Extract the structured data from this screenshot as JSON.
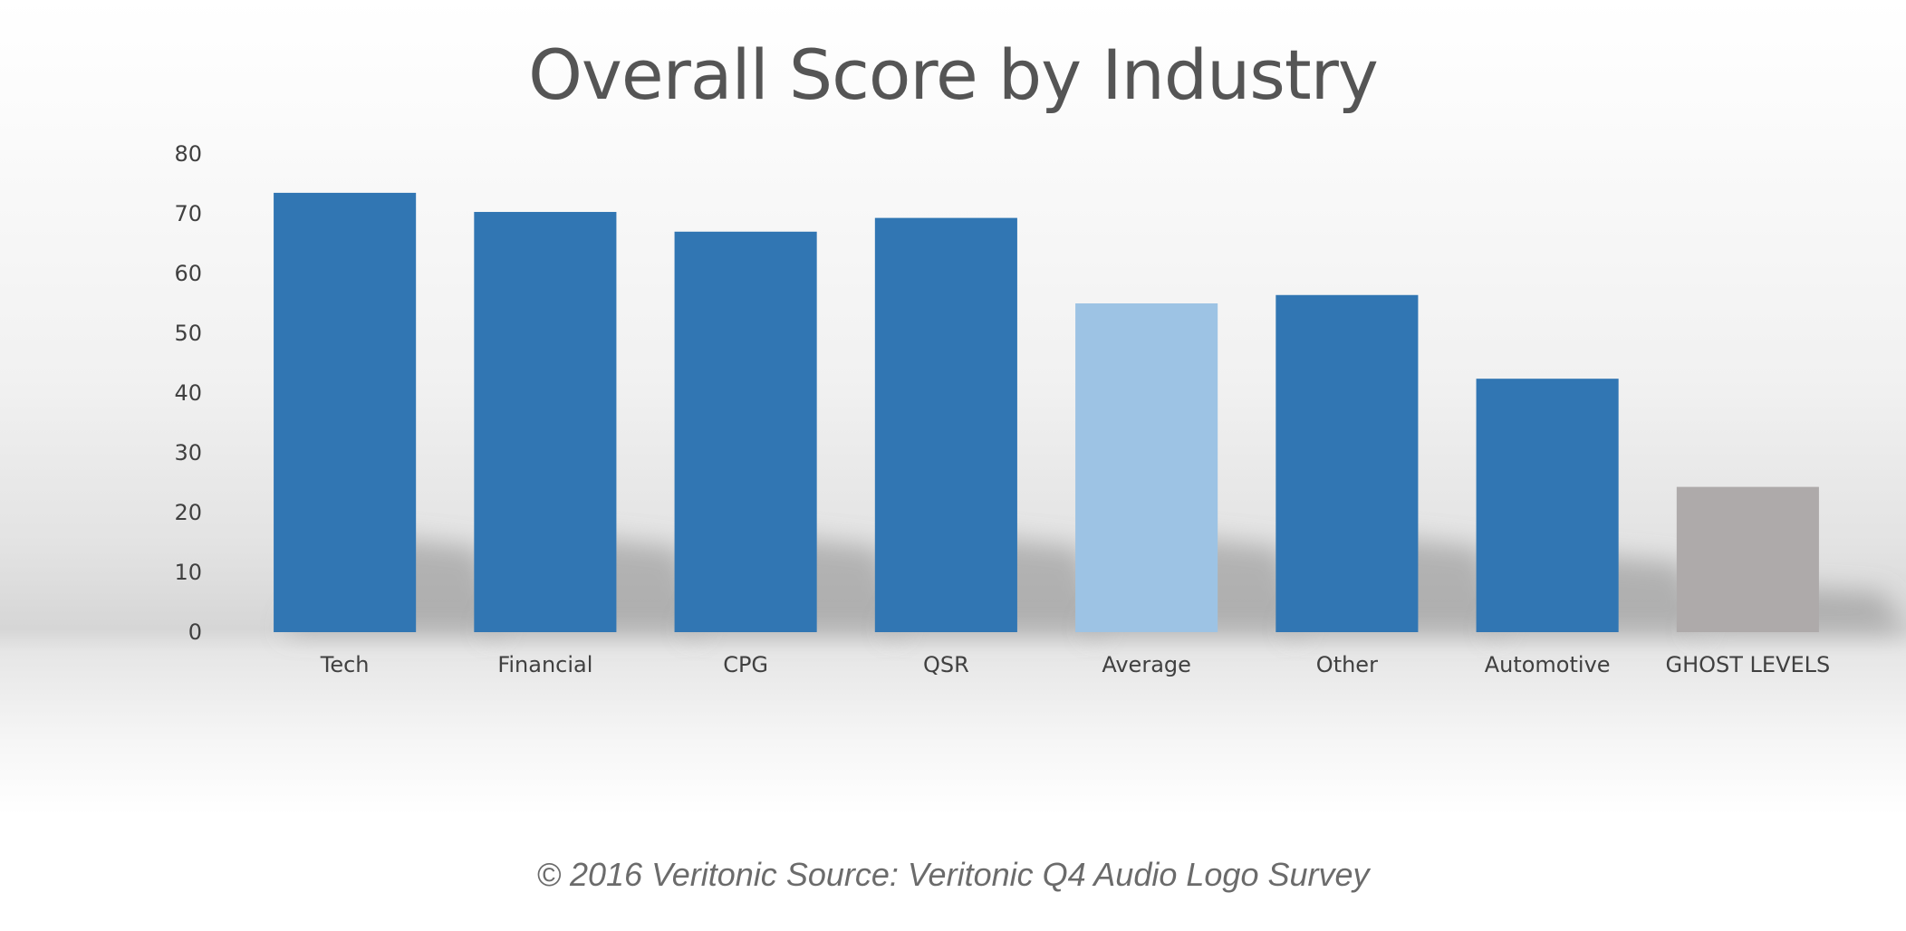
{
  "chart_data": {
    "type": "bar",
    "title": "Overall Score by Industry",
    "xlabel": "",
    "ylabel": "",
    "categories": [
      "Tech",
      "Financial",
      "CPG",
      "QSR",
      "Average",
      "Other",
      "Automotive",
      "GHOST LEVELS"
    ],
    "values": [
      73.5,
      70.3,
      67,
      69.3,
      55,
      56.4,
      42.4,
      24.3
    ],
    "ylim": [
      0,
      80
    ],
    "yticks": [
      "0",
      "10",
      "20",
      "30",
      "40",
      "50",
      "60",
      "70",
      "80"
    ],
    "grid": false,
    "legend": "none",
    "colors": {
      "default": "#3176b3",
      "Average": "#9dc3e4",
      "GHOST LEVELS": "#aeaaaa"
    }
  },
  "footer": {
    "text": "© 2016 Veritonic Source: Veritonic Q4 Audio Logo Survey"
  }
}
